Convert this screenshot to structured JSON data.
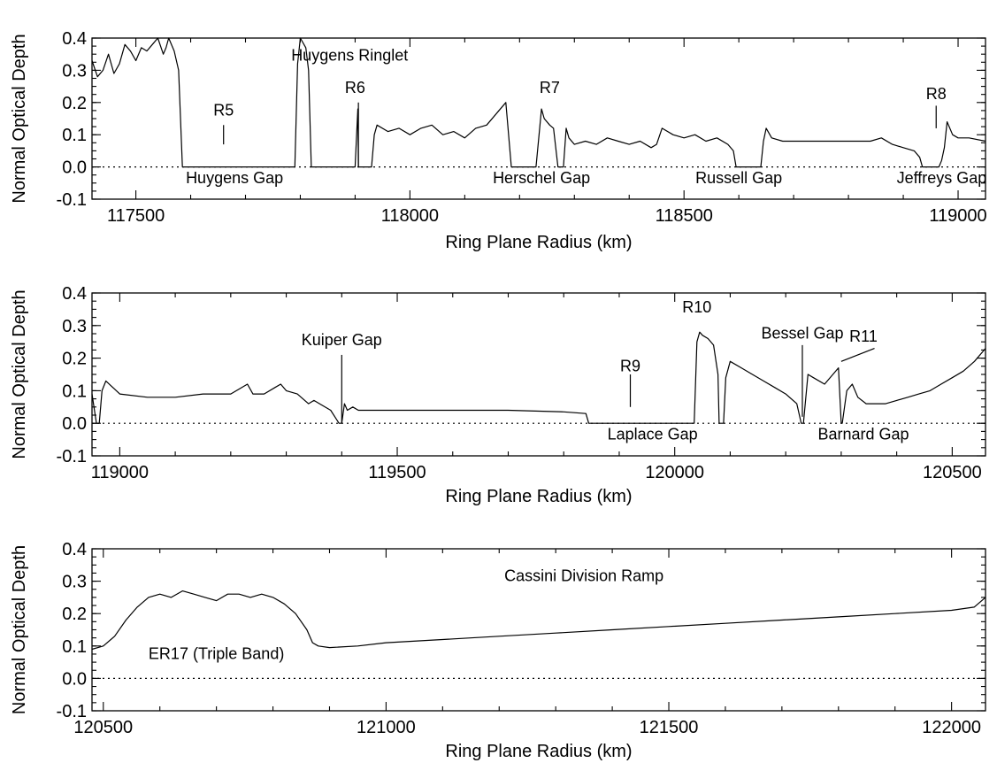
{
  "chart_data": [
    {
      "type": "line",
      "xlabel": "Ring Plane Radius (km)",
      "ylabel": "Normal Optical Depth",
      "xlim": [
        117420,
        119050
      ],
      "ylim": [
        -0.1,
        0.4
      ],
      "xticks": [
        117500,
        118000,
        118500,
        119000
      ],
      "xtick_labels": [
        "117500",
        "118000",
        "118500",
        "119000"
      ],
      "yticks": [
        -0.1,
        0.0,
        0.1,
        0.2,
        0.3,
        0.4
      ],
      "ytick_labels": [
        "-0.1",
        "0.0",
        "0.1",
        "0.2",
        "0.3",
        "0.4"
      ],
      "zero_line": "dotted",
      "series": [
        {
          "x": [
            117420,
            117430,
            117440,
            117450,
            117460,
            117470,
            117480,
            117490,
            117500,
            117510,
            117520,
            117530,
            117540,
            117550,
            117555,
            117560,
            117570,
            117578,
            117585,
            117600,
            117700,
            117790,
            117795,
            117800,
            117810,
            117815,
            117820,
            117900,
            117905,
            117906,
            117910,
            117930,
            117935,
            117940,
            117960,
            117980,
            118000,
            118020,
            118040,
            118060,
            118080,
            118100,
            118120,
            118140,
            118160,
            118175,
            118185,
            118190,
            118230,
            118240,
            118245,
            118255,
            118262,
            118270,
            118280,
            118285,
            118290,
            118300,
            118320,
            118340,
            118360,
            118380,
            118400,
            118420,
            118440,
            118450,
            118460,
            118480,
            118500,
            118520,
            118540,
            118560,
            118580,
            118590,
            118595,
            118600,
            118640,
            118645,
            118650,
            118660,
            118680,
            118700,
            118740,
            118780,
            118820,
            118840,
            118860,
            118880,
            118900,
            118920,
            118930,
            118935,
            118965,
            118970,
            118975,
            118980,
            118990,
            119000,
            119020,
            119050
          ],
          "y": [
            0.33,
            0.28,
            0.3,
            0.35,
            0.29,
            0.32,
            0.38,
            0.36,
            0.33,
            0.37,
            0.36,
            0.38,
            0.4,
            0.35,
            0.37,
            0.4,
            0.36,
            0.3,
            0.0,
            0.0,
            0.0,
            0.0,
            0.32,
            0.4,
            0.37,
            0.3,
            0.0,
            0.0,
            0.18,
            0.0,
            0.0,
            0.0,
            0.1,
            0.13,
            0.11,
            0.12,
            0.1,
            0.12,
            0.13,
            0.1,
            0.11,
            0.09,
            0.12,
            0.13,
            0.17,
            0.2,
            0.0,
            0.0,
            0.0,
            0.18,
            0.15,
            0.13,
            0.12,
            0.0,
            0.0,
            0.12,
            0.09,
            0.07,
            0.08,
            0.07,
            0.09,
            0.08,
            0.07,
            0.08,
            0.06,
            0.07,
            0.12,
            0.1,
            0.09,
            0.1,
            0.08,
            0.09,
            0.07,
            0.05,
            0.0,
            0.0,
            0.0,
            0.08,
            0.12,
            0.09,
            0.08,
            0.08,
            0.08,
            0.08,
            0.08,
            0.08,
            0.09,
            0.07,
            0.06,
            0.05,
            0.03,
            0.0,
            0.0,
            0.02,
            0.06,
            0.14,
            0.1,
            0.09,
            0.09,
            0.08
          ]
        }
      ],
      "annotations": [
        {
          "text": "R5",
          "x": 117660,
          "y": 0.16
        },
        {
          "text": "Huygens Ringlet",
          "x": 117890,
          "y": 0.33
        },
        {
          "text": "R6",
          "x": 117900,
          "y": 0.23
        },
        {
          "text": "R7",
          "x": 118255,
          "y": 0.23
        },
        {
          "text": "R8",
          "x": 118960,
          "y": 0.21
        },
        {
          "text": "Huygens Gap",
          "x": 117680,
          "y": -0.05
        },
        {
          "text": "Herschel Gap",
          "x": 118240,
          "y": -0.05
        },
        {
          "text": "Russell Gap",
          "x": 118600,
          "y": -0.05
        },
        {
          "text": "Jeffreys Gap",
          "x": 118970,
          "y": -0.05
        }
      ]
    },
    {
      "type": "line",
      "xlabel": "Ring Plane Radius (km)",
      "ylabel": "Normal Optical Depth",
      "xlim": [
        118950,
        120560
      ],
      "ylim": [
        -0.1,
        0.4
      ],
      "xticks": [
        119000,
        119500,
        120000,
        120500
      ],
      "xtick_labels": [
        "119000",
        "119500",
        "120000",
        "120500"
      ],
      "yticks": [
        -0.1,
        0.0,
        0.1,
        0.2,
        0.3,
        0.4
      ],
      "ytick_labels": [
        "-0.1",
        "0.0",
        "0.1",
        "0.2",
        "0.3",
        "0.4"
      ],
      "zero_line": "dotted",
      "series": [
        {
          "x": [
            118950,
            118958,
            118963,
            118968,
            118975,
            119000,
            119050,
            119100,
            119150,
            119200,
            119230,
            119240,
            119260,
            119280,
            119290,
            119300,
            119320,
            119340,
            119350,
            119360,
            119380,
            119395,
            119400,
            119405,
            119410,
            119420,
            119430,
            119440,
            119500,
            119600,
            119700,
            119800,
            119840,
            119845,
            119850,
            119900,
            120000,
            120035,
            120040,
            120045,
            120050,
            120060,
            120070,
            120078,
            120080,
            120088,
            120092,
            120100,
            120120,
            120140,
            120160,
            120180,
            120200,
            120220,
            120228,
            120232,
            120240,
            120250,
            120270,
            120285,
            120295,
            120300,
            120302,
            120310,
            120320,
            120330,
            120345,
            120360,
            120380,
            120400,
            120420,
            120440,
            120460,
            120480,
            120500,
            120520,
            120540,
            120560
          ],
          "y": [
            0.09,
            0.0,
            0.0,
            0.1,
            0.13,
            0.09,
            0.08,
            0.08,
            0.09,
            0.09,
            0.12,
            0.09,
            0.09,
            0.11,
            0.12,
            0.1,
            0.09,
            0.06,
            0.07,
            0.06,
            0.04,
            0.0,
            0.0,
            0.06,
            0.04,
            0.05,
            0.04,
            0.04,
            0.04,
            0.04,
            0.04,
            0.035,
            0.03,
            0.0,
            0.0,
            0.0,
            0.0,
            0.0,
            0.25,
            0.28,
            0.27,
            0.26,
            0.24,
            0.15,
            0.0,
            0.0,
            0.14,
            0.19,
            0.17,
            0.15,
            0.13,
            0.11,
            0.09,
            0.06,
            0.0,
            0.0,
            0.15,
            0.14,
            0.12,
            0.15,
            0.17,
            0.0,
            0.0,
            0.1,
            0.12,
            0.08,
            0.06,
            0.06,
            0.06,
            0.07,
            0.08,
            0.09,
            0.1,
            0.12,
            0.14,
            0.16,
            0.19,
            0.23
          ]
        }
      ],
      "annotations": [
        {
          "text": "Kuiper Gap",
          "x": 119400,
          "y": 0.24
        },
        {
          "text": "R9",
          "x": 119920,
          "y": 0.16
        },
        {
          "text": "R10",
          "x": 120040,
          "y": 0.34
        },
        {
          "text": "Bessel Gap",
          "x": 120230,
          "y": 0.26
        },
        {
          "text": "R11",
          "x": 120340,
          "y": 0.25
        },
        {
          "text": "Laplace Gap",
          "x": 119960,
          "y": -0.05
        },
        {
          "text": "Barnard Gap",
          "x": 120340,
          "y": -0.05
        }
      ]
    },
    {
      "type": "line",
      "xlabel": "Ring Plane Radius (km)",
      "ylabel": "Normal Optical Depth",
      "xlim": [
        120480,
        122060
      ],
      "ylim": [
        -0.1,
        0.4
      ],
      "xticks": [
        120500,
        121000,
        121500,
        122000
      ],
      "xtick_labels": [
        "120500",
        "121000",
        "121500",
        "122000"
      ],
      "yticks": [
        -0.1,
        0.0,
        0.1,
        0.2,
        0.3,
        0.4
      ],
      "ytick_labels": [
        "-0.1",
        "0.0",
        "0.1",
        "0.2",
        "0.3",
        "0.4"
      ],
      "zero_line": "dotted",
      "series": [
        {
          "x": [
            120480,
            120500,
            120520,
            120540,
            120560,
            120580,
            120600,
            120620,
            120640,
            120660,
            120680,
            120700,
            120720,
            120740,
            120760,
            120780,
            120800,
            120820,
            120840,
            120860,
            120870,
            120880,
            120900,
            120950,
            121000,
            121100,
            121200,
            121300,
            121400,
            121500,
            121600,
            121700,
            121800,
            121900,
            122000,
            122040,
            122060
          ],
          "y": [
            0.09,
            0.1,
            0.13,
            0.18,
            0.22,
            0.25,
            0.26,
            0.25,
            0.27,
            0.26,
            0.25,
            0.24,
            0.26,
            0.26,
            0.25,
            0.26,
            0.25,
            0.23,
            0.2,
            0.15,
            0.11,
            0.1,
            0.095,
            0.1,
            0.11,
            0.12,
            0.13,
            0.14,
            0.15,
            0.16,
            0.17,
            0.18,
            0.19,
            0.2,
            0.21,
            0.22,
            0.25
          ]
        }
      ],
      "annotations": [
        {
          "text": "Cassini Division Ramp",
          "x": 121350,
          "y": 0.3
        },
        {
          "text": "ER17 (Triple Band)",
          "x": 120700,
          "y": 0.06
        }
      ]
    }
  ]
}
